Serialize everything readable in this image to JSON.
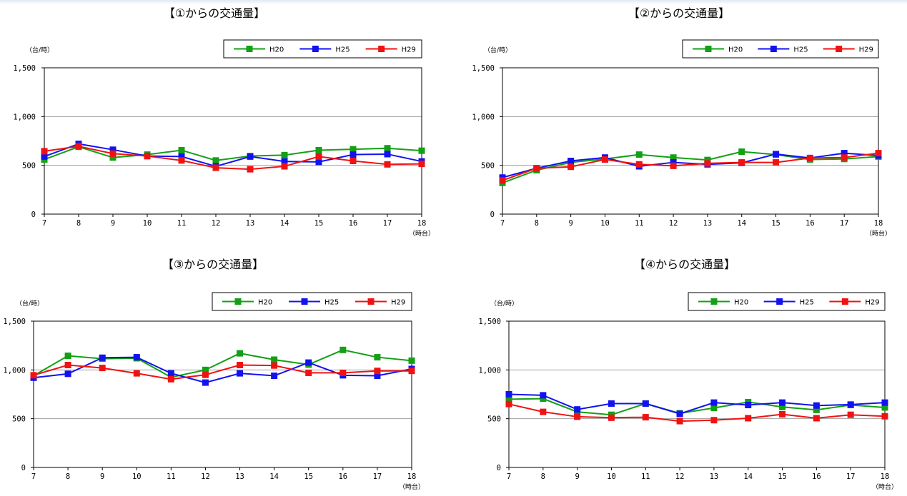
{
  "chart_data": [
    {
      "type": "line",
      "title": "【①からの交通量】",
      "ylabel": "（台/時）",
      "xlabel": "（時台）",
      "x": [
        7,
        8,
        9,
        10,
        11,
        12,
        13,
        14,
        15,
        16,
        17,
        18
      ],
      "ylim": [
        0,
        1500
      ],
      "yticks": [
        0,
        500,
        1000,
        1500
      ],
      "ytick_labels": [
        "0",
        "500",
        "1,000",
        "1,500"
      ],
      "grid": true,
      "legend_position": "top-right",
      "series": [
        {
          "name": "H20",
          "color": "#13a015",
          "values": [
            560,
            690,
            580,
            610,
            655,
            550,
            595,
            605,
            655,
            665,
            675,
            650
          ]
        },
        {
          "name": "H25",
          "color": "#1212f0",
          "values": [
            590,
            720,
            660,
            595,
            590,
            490,
            590,
            540,
            535,
            610,
            615,
            540
          ]
        },
        {
          "name": "H29",
          "color": "#f01212",
          "values": [
            645,
            695,
            620,
            595,
            550,
            475,
            460,
            490,
            590,
            545,
            510,
            515
          ]
        }
      ]
    },
    {
      "type": "line",
      "title": "【②からの交通量】",
      "ylabel": "（台/時）",
      "xlabel": "（時台）",
      "x": [
        7,
        8,
        9,
        10,
        11,
        12,
        13,
        14,
        15,
        16,
        17,
        18
      ],
      "ylim": [
        0,
        1500
      ],
      "yticks": [
        0,
        500,
        1000,
        1500
      ],
      "ytick_labels": [
        "0",
        "500",
        "1,000",
        "1,500"
      ],
      "grid": true,
      "legend_position": "top-right",
      "series": [
        {
          "name": "H20",
          "color": "#13a015",
          "values": [
            320,
            450,
            530,
            565,
            610,
            580,
            555,
            640,
            610,
            560,
            565,
            590
          ]
        },
        {
          "name": "H25",
          "color": "#1212f0",
          "values": [
            375,
            470,
            545,
            580,
            490,
            530,
            510,
            525,
            615,
            575,
            625,
            600
          ]
        },
        {
          "name": "H29",
          "color": "#f01212",
          "values": [
            345,
            470,
            485,
            560,
            510,
            495,
            520,
            530,
            530,
            575,
            580,
            625
          ]
        }
      ]
    },
    {
      "type": "line",
      "title": "【③からの交通量】",
      "ylabel": "（台/時）",
      "xlabel": "（時台）",
      "x": [
        7,
        8,
        9,
        10,
        11,
        12,
        13,
        14,
        15,
        16,
        17,
        18
      ],
      "ylim": [
        0,
        1500
      ],
      "yticks": [
        0,
        500,
        1000,
        1500
      ],
      "ytick_labels": [
        "0",
        "500",
        "1,000",
        "1,500"
      ],
      "grid": true,
      "legend_position": "top-right",
      "series": [
        {
          "name": "H20",
          "color": "#13a015",
          "values": [
            940,
            1145,
            1115,
            1120,
            925,
            1000,
            1170,
            1105,
            1055,
            1205,
            1130,
            1095
          ]
        },
        {
          "name": "H25",
          "color": "#1212f0",
          "values": [
            920,
            960,
            1125,
            1130,
            965,
            870,
            965,
            940,
            1075,
            945,
            940,
            1010
          ]
        },
        {
          "name": "H29",
          "color": "#f01212",
          "values": [
            945,
            1050,
            1020,
            965,
            905,
            950,
            1050,
            1045,
            970,
            970,
            990,
            990
          ]
        }
      ]
    },
    {
      "type": "line",
      "title": "【④からの交通量】",
      "ylabel": "（台/時）",
      "xlabel": "（時台）",
      "x": [
        7,
        8,
        9,
        10,
        11,
        12,
        13,
        14,
        15,
        16,
        17,
        18
      ],
      "ylim": [
        0,
        1500
      ],
      "yticks": [
        0,
        500,
        1000,
        1500
      ],
      "ytick_labels": [
        "0",
        "500",
        "1,000",
        "1,500"
      ],
      "grid": true,
      "legend_position": "top-right",
      "series": [
        {
          "name": "H20",
          "color": "#13a015",
          "values": [
            700,
            705,
            570,
            540,
            655,
            555,
            610,
            670,
            620,
            590,
            640,
            615
          ]
        },
        {
          "name": "H25",
          "color": "#1212f0",
          "values": [
            750,
            740,
            595,
            655,
            655,
            550,
            665,
            640,
            665,
            635,
            645,
            665
          ]
        },
        {
          "name": "H29",
          "color": "#f01212",
          "values": [
            650,
            570,
            520,
            510,
            515,
            475,
            485,
            505,
            545,
            505,
            540,
            525
          ]
        }
      ]
    }
  ]
}
